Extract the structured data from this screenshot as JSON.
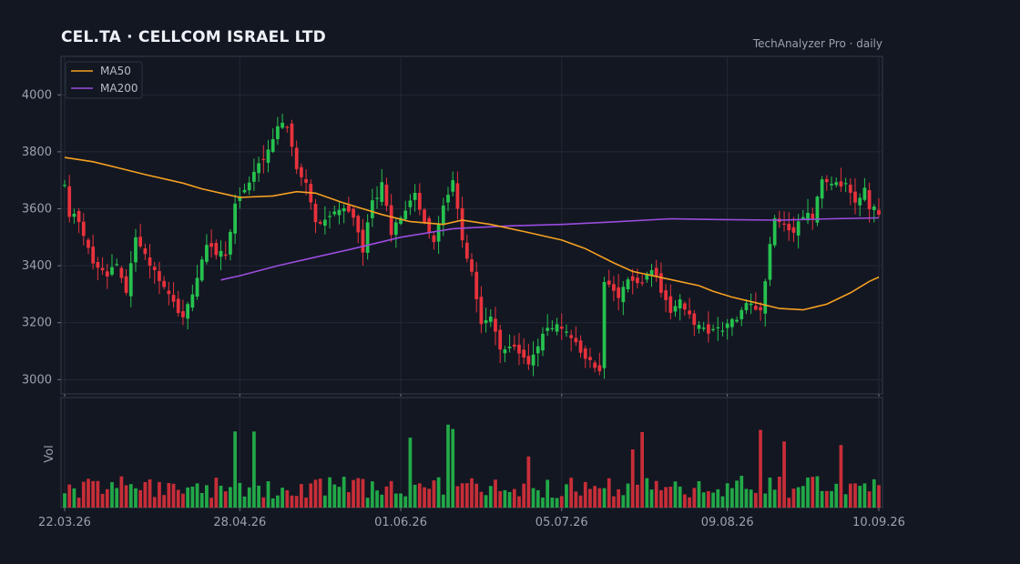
{
  "header": {
    "title": "CEL.TA  ·  CELLCOM ISRAEL LTD",
    "subtitle": "TechAnalyzer Pro · daily"
  },
  "colors": {
    "up": "#26c24f",
    "down": "#e8323c",
    "ma50": "#f5a021",
    "ma200": "#9b4ddf",
    "grid": "#232836",
    "axis": "#363b48",
    "background": "#131722"
  },
  "chart_data": {
    "type": "candlestick",
    "title": "CEL.TA  ·  CELLCOM ISRAEL LTD",
    "y_ticks": [
      3000,
      3200,
      3400,
      3600,
      3800,
      4000
    ],
    "ylim": [
      2950,
      4135
    ],
    "volume_label": "Vol",
    "x_tick_labels": [
      {
        "date": "2026-03-22",
        "label": "22.03.26"
      },
      {
        "date": "2026-04-28",
        "label": "28.04.26"
      },
      {
        "date": "2026-06-01",
        "label": "01.06.26"
      },
      {
        "date": "2026-07-05",
        "label": "05.07.26"
      },
      {
        "date": "2026-08-09",
        "label": "09.08.26"
      },
      {
        "date": "2026-09-10",
        "label": "10.09.26"
      }
    ],
    "x_range": [
      "2026-03-22",
      "2026-09-10"
    ],
    "legend": {
      "position": "top-left",
      "entries": [
        "MA50",
        "MA200"
      ]
    },
    "grid": true,
    "close_anchors": [
      [
        "2026-03-22",
        3680
      ],
      [
        "2026-03-23",
        3580
      ],
      [
        "2026-03-25",
        3560
      ],
      [
        "2026-03-28",
        3400
      ],
      [
        "2026-03-31",
        3370
      ],
      [
        "2026-04-02",
        3410
      ],
      [
        "2026-04-04",
        3300
      ],
      [
        "2026-04-06",
        3490
      ],
      [
        "2026-04-08",
        3440
      ],
      [
        "2026-04-11",
        3360
      ],
      [
        "2026-04-13",
        3310
      ],
      [
        "2026-04-16",
        3210
      ],
      [
        "2026-04-21",
        3460
      ],
      [
        "2026-04-23",
        3450
      ],
      [
        "2026-04-25",
        3440
      ],
      [
        "2026-04-27",
        3620
      ],
      [
        "2026-04-30",
        3700
      ],
      [
        "2026-05-03",
        3780
      ],
      [
        "2026-05-06",
        3880
      ],
      [
        "2026-05-08",
        3900
      ],
      [
        "2026-05-10",
        3740
      ],
      [
        "2026-05-12",
        3680
      ],
      [
        "2026-05-14",
        3540
      ],
      [
        "2026-05-17",
        3580
      ],
      [
        "2026-05-20",
        3600
      ],
      [
        "2026-05-22",
        3560
      ],
      [
        "2026-05-24",
        3460
      ],
      [
        "2026-05-26",
        3620
      ],
      [
        "2026-05-28",
        3680
      ],
      [
        "2026-05-30",
        3520
      ],
      [
        "2026-06-02",
        3580
      ],
      [
        "2026-06-04",
        3660
      ],
      [
        "2026-06-06",
        3560
      ],
      [
        "2026-06-08",
        3480
      ],
      [
        "2026-06-10",
        3620
      ],
      [
        "2026-06-12",
        3700
      ],
      [
        "2026-06-14",
        3480
      ],
      [
        "2026-06-16",
        3390
      ],
      [
        "2026-06-18",
        3200
      ],
      [
        "2026-06-20",
        3230
      ],
      [
        "2026-06-22",
        3110
      ],
      [
        "2026-06-25",
        3120
      ],
      [
        "2026-06-28",
        3060
      ],
      [
        "2026-07-01",
        3160
      ],
      [
        "2026-07-04",
        3200
      ],
      [
        "2026-07-07",
        3160
      ],
      [
        "2026-07-10",
        3070
      ],
      [
        "2026-07-13",
        3040
      ],
      [
        "2026-07-14",
        3330
      ],
      [
        "2026-07-17",
        3300
      ],
      [
        "2026-07-20",
        3360
      ],
      [
        "2026-07-22",
        3330
      ],
      [
        "2026-07-24",
        3390
      ],
      [
        "2026-07-26",
        3310
      ],
      [
        "2026-07-28",
        3240
      ],
      [
        "2026-07-30",
        3270
      ],
      [
        "2026-08-01",
        3220
      ],
      [
        "2026-08-04",
        3170
      ],
      [
        "2026-08-07",
        3170
      ],
      [
        "2026-08-10",
        3200
      ],
      [
        "2026-08-13",
        3260
      ],
      [
        "2026-08-16",
        3240
      ],
      [
        "2026-08-19",
        3580
      ],
      [
        "2026-08-21",
        3550
      ],
      [
        "2026-08-23",
        3510
      ],
      [
        "2026-08-25",
        3580
      ],
      [
        "2026-08-27",
        3570
      ],
      [
        "2026-08-29",
        3690
      ],
      [
        "2026-09-01",
        3680
      ],
      [
        "2026-09-03",
        3700
      ],
      [
        "2026-09-05",
        3620
      ],
      [
        "2026-09-07",
        3680
      ],
      [
        "2026-09-08",
        3600
      ],
      [
        "2026-09-10",
        3590
      ]
    ],
    "ma50": [
      [
        "2026-03-22",
        3780
      ],
      [
        "2026-03-28",
        3765
      ],
      [
        "2026-04-02",
        3745
      ],
      [
        "2026-04-08",
        3720
      ],
      [
        "2026-04-16",
        3690
      ],
      [
        "2026-04-20",
        3670
      ],
      [
        "2026-04-28",
        3640
      ],
      [
        "2026-05-05",
        3645
      ],
      [
        "2026-05-10",
        3660
      ],
      [
        "2026-05-14",
        3655
      ],
      [
        "2026-05-20",
        3620
      ],
      [
        "2026-05-28",
        3580
      ],
      [
        "2026-06-03",
        3555
      ],
      [
        "2026-06-10",
        3545
      ],
      [
        "2026-06-14",
        3560
      ],
      [
        "2026-06-20",
        3545
      ],
      [
        "2026-06-27",
        3520
      ],
      [
        "2026-07-05",
        3490
      ],
      [
        "2026-07-10",
        3460
      ],
      [
        "2026-07-16",
        3410
      ],
      [
        "2026-07-20",
        3380
      ],
      [
        "2026-07-27",
        3355
      ],
      [
        "2026-08-03",
        3330
      ],
      [
        "2026-08-06",
        3310
      ],
      [
        "2026-08-10",
        3290
      ],
      [
        "2026-08-15",
        3270
      ],
      [
        "2026-08-20",
        3250
      ],
      [
        "2026-08-25",
        3245
      ],
      [
        "2026-08-30",
        3265
      ],
      [
        "2026-09-04",
        3305
      ],
      [
        "2026-09-08",
        3345
      ],
      [
        "2026-09-10",
        3360
      ]
    ],
    "ma200": [
      [
        "2026-04-24",
        3350
      ],
      [
        "2026-04-28",
        3365
      ],
      [
        "2026-05-06",
        3400
      ],
      [
        "2026-05-14",
        3430
      ],
      [
        "2026-05-22",
        3460
      ],
      [
        "2026-06-01",
        3500
      ],
      [
        "2026-06-12",
        3530
      ],
      [
        "2026-06-24",
        3540
      ],
      [
        "2026-07-05",
        3545
      ],
      [
        "2026-07-15",
        3553
      ],
      [
        "2026-07-28",
        3565
      ],
      [
        "2026-08-08",
        3562
      ],
      [
        "2026-08-20",
        3560
      ],
      [
        "2026-08-31",
        3565
      ],
      [
        "2026-09-10",
        3568
      ]
    ]
  }
}
